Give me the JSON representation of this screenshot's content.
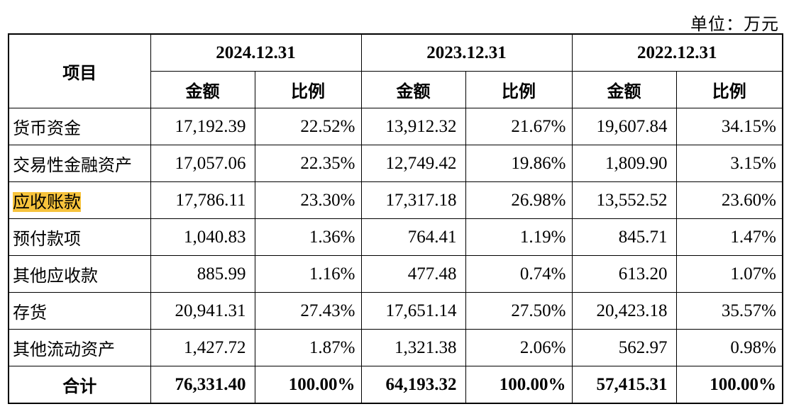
{
  "unit_label": "单位：万元",
  "header": {
    "item": "项目",
    "years": [
      "2024.12.31",
      "2023.12.31",
      "2022.12.31"
    ],
    "amount": "金额",
    "ratio": "比例"
  },
  "rows": [
    {
      "label": "货币资金",
      "cells": [
        "17,192.39",
        "22.52%",
        "13,912.32",
        "21.67%",
        "19,607.84",
        "34.15%"
      ]
    },
    {
      "label": "交易性金融资产",
      "cells": [
        "17,057.06",
        "22.35%",
        "12,749.42",
        "19.86%",
        "1,809.90",
        "3.15%"
      ]
    },
    {
      "label": "应收账款",
      "cells": [
        "17,786.11",
        "23.30%",
        "17,317.18",
        "26.98%",
        "13,552.52",
        "23.60%"
      ]
    },
    {
      "label": "预付款项",
      "cells": [
        "1,040.83",
        "1.36%",
        "764.41",
        "1.19%",
        "845.71",
        "1.47%"
      ]
    },
    {
      "label": "其他应收款",
      "cells": [
        "885.99",
        "1.16%",
        "477.48",
        "0.74%",
        "613.20",
        "1.07%"
      ]
    },
    {
      "label": "存货",
      "cells": [
        "20,941.31",
        "27.43%",
        "17,651.14",
        "27.50%",
        "20,423.18",
        "35.57%"
      ]
    },
    {
      "label": "其他流动资产",
      "cells": [
        "1,427.72",
        "1.87%",
        "1,321.38",
        "2.06%",
        "562.97",
        "0.98%"
      ]
    }
  ],
  "total": {
    "label": "合计",
    "cells": [
      "76,331.40",
      "100.00%",
      "64,193.32",
      "100.00%",
      "57,415.31",
      "100.00%"
    ]
  },
  "highlight_color": "#f7c33c"
}
